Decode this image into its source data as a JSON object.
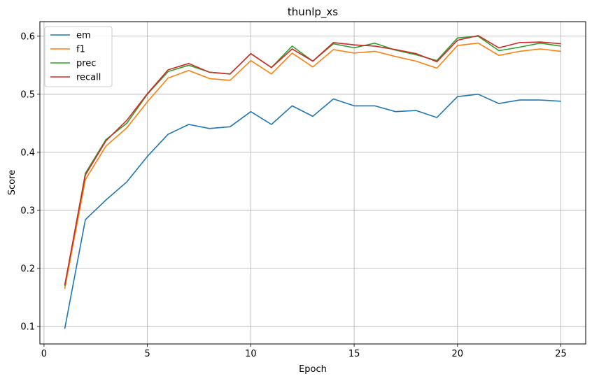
{
  "chart_data": {
    "type": "line",
    "title": "thunlp_xs",
    "xlabel": "Epoch",
    "ylabel": "Score",
    "xlim": [
      -0.2,
      26.2
    ],
    "ylim": [
      0.07,
      0.625
    ],
    "xticks": [
      0,
      5,
      10,
      15,
      20,
      25
    ],
    "yticks": [
      0.1,
      0.2,
      0.3,
      0.4,
      0.5,
      0.6
    ],
    "xtick_labels": [
      "0",
      "5",
      "10",
      "15",
      "20",
      "25"
    ],
    "ytick_labels": [
      "0.1",
      "0.2",
      "0.3",
      "0.4",
      "0.5",
      "0.6"
    ],
    "grid": true,
    "legend_position": "top-left",
    "x": [
      1,
      2,
      3,
      4,
      5,
      6,
      7,
      8,
      9,
      10,
      11,
      12,
      13,
      14,
      15,
      16,
      17,
      18,
      19,
      20,
      21,
      22,
      23,
      24,
      25
    ],
    "series": [
      {
        "name": "em",
        "color": "#1f77b4",
        "values": [
          0.096,
          0.284,
          0.318,
          0.349,
          0.393,
          0.431,
          0.448,
          0.441,
          0.444,
          0.47,
          0.448,
          0.48,
          0.462,
          0.492,
          0.48,
          0.48,
          0.47,
          0.472,
          0.46,
          0.496,
          0.5,
          0.484,
          0.49,
          0.49,
          0.488
        ]
      },
      {
        "name": "f1",
        "color": "#ff7f0e",
        "values": [
          0.165,
          0.353,
          0.411,
          0.442,
          0.487,
          0.528,
          0.541,
          0.527,
          0.524,
          0.558,
          0.535,
          0.571,
          0.547,
          0.577,
          0.571,
          0.574,
          0.565,
          0.557,
          0.545,
          0.584,
          0.588,
          0.567,
          0.574,
          0.578,
          0.574
        ]
      },
      {
        "name": "prec",
        "color": "#2ca02c",
        "values": [
          0.17,
          0.364,
          0.422,
          0.45,
          0.5,
          0.539,
          0.55,
          0.538,
          0.535,
          0.57,
          0.546,
          0.583,
          0.557,
          0.587,
          0.58,
          0.588,
          0.576,
          0.568,
          0.558,
          0.597,
          0.6,
          0.575,
          0.581,
          0.588,
          0.583
        ]
      },
      {
        "name": "recall",
        "color": "#d62728",
        "values": [
          0.171,
          0.361,
          0.42,
          0.455,
          0.501,
          0.542,
          0.553,
          0.538,
          0.535,
          0.57,
          0.546,
          0.578,
          0.557,
          0.589,
          0.585,
          0.583,
          0.577,
          0.57,
          0.556,
          0.593,
          0.601,
          0.58,
          0.589,
          0.59,
          0.587
        ]
      }
    ]
  }
}
